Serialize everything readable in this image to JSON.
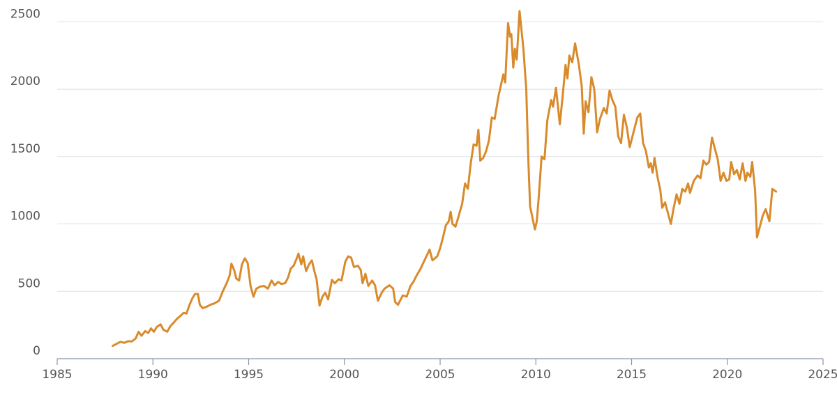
{
  "chart_data": {
    "type": "line",
    "title": "",
    "xlabel": "",
    "ylabel": "",
    "xlim": [
      1985,
      2025
    ],
    "ylim": [
      0,
      2600
    ],
    "x_ticks": [
      1985,
      1990,
      1995,
      2000,
      2005,
      2010,
      2015,
      2020,
      2025
    ],
    "y_ticks": [
      0,
      500,
      1000,
      1500,
      2000,
      2500
    ],
    "grid": "horizontal",
    "legend": "none",
    "series": [
      {
        "color": "#d98a2b",
        "points": [
          [
            1987.9,
            95
          ],
          [
            1988.1,
            110
          ],
          [
            1988.3,
            125
          ],
          [
            1988.5,
            118
          ],
          [
            1988.7,
            130
          ],
          [
            1988.9,
            128
          ],
          [
            1989.1,
            150
          ],
          [
            1989.25,
            200
          ],
          [
            1989.4,
            170
          ],
          [
            1989.6,
            205
          ],
          [
            1989.75,
            190
          ],
          [
            1989.9,
            225
          ],
          [
            1990.05,
            200
          ],
          [
            1990.2,
            235
          ],
          [
            1990.4,
            255
          ],
          [
            1990.55,
            215
          ],
          [
            1990.75,
            200
          ],
          [
            1990.9,
            240
          ],
          [
            1991.1,
            270
          ],
          [
            1991.25,
            295
          ],
          [
            1991.45,
            320
          ],
          [
            1991.6,
            340
          ],
          [
            1991.75,
            335
          ],
          [
            1991.9,
            395
          ],
          [
            1992.05,
            445
          ],
          [
            1992.2,
            480
          ],
          [
            1992.35,
            480
          ],
          [
            1992.45,
            400
          ],
          [
            1992.6,
            375
          ],
          [
            1992.8,
            385
          ],
          [
            1993.0,
            400
          ],
          [
            1993.2,
            410
          ],
          [
            1993.45,
            430
          ],
          [
            1993.65,
            500
          ],
          [
            1993.85,
            560
          ],
          [
            1994.0,
            615
          ],
          [
            1994.1,
            705
          ],
          [
            1994.25,
            655
          ],
          [
            1994.35,
            595
          ],
          [
            1994.5,
            580
          ],
          [
            1994.65,
            700
          ],
          [
            1994.8,
            745
          ],
          [
            1994.95,
            710
          ],
          [
            1995.1,
            540
          ],
          [
            1995.25,
            460
          ],
          [
            1995.4,
            520
          ],
          [
            1995.6,
            535
          ],
          [
            1995.8,
            540
          ],
          [
            1996.0,
            520
          ],
          [
            1996.2,
            580
          ],
          [
            1996.35,
            545
          ],
          [
            1996.55,
            570
          ],
          [
            1996.7,
            555
          ],
          [
            1996.9,
            560
          ],
          [
            1997.05,
            600
          ],
          [
            1997.2,
            670
          ],
          [
            1997.35,
            690
          ],
          [
            1997.5,
            740
          ],
          [
            1997.6,
            780
          ],
          [
            1997.75,
            700
          ],
          [
            1997.85,
            760
          ],
          [
            1998.0,
            650
          ],
          [
            1998.15,
            700
          ],
          [
            1998.3,
            730
          ],
          [
            1998.45,
            640
          ],
          [
            1998.55,
            590
          ],
          [
            1998.7,
            395
          ],
          [
            1998.85,
            460
          ],
          [
            1999.0,
            490
          ],
          [
            1999.15,
            440
          ],
          [
            1999.35,
            585
          ],
          [
            1999.5,
            560
          ],
          [
            1999.7,
            590
          ],
          [
            1999.85,
            580
          ],
          [
            2000.05,
            720
          ],
          [
            2000.2,
            760
          ],
          [
            2000.35,
            750
          ],
          [
            2000.5,
            680
          ],
          [
            2000.7,
            690
          ],
          [
            2000.85,
            660
          ],
          [
            2000.95,
            560
          ],
          [
            2001.1,
            630
          ],
          [
            2001.25,
            540
          ],
          [
            2001.45,
            580
          ],
          [
            2001.6,
            545
          ],
          [
            2001.75,
            430
          ],
          [
            2001.95,
            490
          ],
          [
            2002.1,
            520
          ],
          [
            2002.35,
            545
          ],
          [
            2002.55,
            520
          ],
          [
            2002.65,
            420
          ],
          [
            2002.8,
            400
          ],
          [
            2003.05,
            470
          ],
          [
            2003.25,
            460
          ],
          [
            2003.45,
            540
          ],
          [
            2003.6,
            570
          ],
          [
            2003.8,
            625
          ],
          [
            2003.95,
            660
          ],
          [
            2004.15,
            720
          ],
          [
            2004.35,
            780
          ],
          [
            2004.45,
            810
          ],
          [
            2004.6,
            730
          ],
          [
            2004.85,
            760
          ],
          [
            2005.0,
            820
          ],
          [
            2005.15,
            900
          ],
          [
            2005.3,
            990
          ],
          [
            2005.45,
            1020
          ],
          [
            2005.55,
            1090
          ],
          [
            2005.65,
            1000
          ],
          [
            2005.8,
            980
          ],
          [
            2005.95,
            1050
          ],
          [
            2006.15,
            1150
          ],
          [
            2006.3,
            1300
          ],
          [
            2006.45,
            1260
          ],
          [
            2006.6,
            1450
          ],
          [
            2006.75,
            1590
          ],
          [
            2006.9,
            1580
          ],
          [
            2007.0,
            1700
          ],
          [
            2007.1,
            1470
          ],
          [
            2007.25,
            1490
          ],
          [
            2007.4,
            1540
          ],
          [
            2007.55,
            1620
          ],
          [
            2007.7,
            1790
          ],
          [
            2007.85,
            1780
          ],
          [
            2008.05,
            1950
          ],
          [
            2008.3,
            2110
          ],
          [
            2008.4,
            2050
          ],
          [
            2008.55,
            2490
          ],
          [
            2008.65,
            2390
          ],
          [
            2008.72,
            2410
          ],
          [
            2008.82,
            2160
          ],
          [
            2008.9,
            2300
          ],
          [
            2009.0,
            2220
          ],
          [
            2009.15,
            2580
          ],
          [
            2009.35,
            2300
          ],
          [
            2009.5,
            2000
          ],
          [
            2009.6,
            1500
          ],
          [
            2009.7,
            1130
          ],
          [
            2009.8,
            1060
          ],
          [
            2009.95,
            960
          ],
          [
            2010.05,
            1020
          ],
          [
            2010.15,
            1200
          ],
          [
            2010.3,
            1500
          ],
          [
            2010.45,
            1480
          ],
          [
            2010.6,
            1770
          ],
          [
            2010.8,
            1920
          ],
          [
            2010.9,
            1870
          ],
          [
            2011.05,
            2010
          ],
          [
            2011.25,
            1740
          ],
          [
            2011.4,
            1950
          ],
          [
            2011.55,
            2180
          ],
          [
            2011.65,
            2080
          ],
          [
            2011.75,
            2250
          ],
          [
            2011.9,
            2200
          ],
          [
            2012.05,
            2340
          ],
          [
            2012.25,
            2180
          ],
          [
            2012.4,
            2020
          ],
          [
            2012.5,
            1670
          ],
          [
            2012.6,
            1910
          ],
          [
            2012.75,
            1830
          ],
          [
            2012.9,
            2090
          ],
          [
            2013.05,
            2000
          ],
          [
            2013.2,
            1680
          ],
          [
            2013.35,
            1780
          ],
          [
            2013.55,
            1860
          ],
          [
            2013.7,
            1820
          ],
          [
            2013.85,
            1990
          ],
          [
            2014.0,
            1920
          ],
          [
            2014.15,
            1870
          ],
          [
            2014.3,
            1650
          ],
          [
            2014.45,
            1600
          ],
          [
            2014.6,
            1810
          ],
          [
            2014.75,
            1720
          ],
          [
            2014.9,
            1570
          ],
          [
            2015.1,
            1680
          ],
          [
            2015.3,
            1790
          ],
          [
            2015.45,
            1820
          ],
          [
            2015.6,
            1600
          ],
          [
            2015.75,
            1540
          ],
          [
            2015.9,
            1420
          ],
          [
            2016.0,
            1450
          ],
          [
            2016.1,
            1380
          ],
          [
            2016.2,
            1490
          ],
          [
            2016.35,
            1350
          ],
          [
            2016.5,
            1250
          ],
          [
            2016.6,
            1120
          ],
          [
            2016.75,
            1160
          ],
          [
            2016.9,
            1080
          ],
          [
            2017.05,
            1000
          ],
          [
            2017.2,
            1120
          ],
          [
            2017.35,
            1220
          ],
          [
            2017.5,
            1150
          ],
          [
            2017.65,
            1260
          ],
          [
            2017.8,
            1240
          ],
          [
            2017.95,
            1300
          ],
          [
            2018.05,
            1230
          ],
          [
            2018.25,
            1320
          ],
          [
            2018.45,
            1360
          ],
          [
            2018.6,
            1340
          ],
          [
            2018.75,
            1470
          ],
          [
            2018.9,
            1440
          ],
          [
            2019.05,
            1460
          ],
          [
            2019.2,
            1640
          ],
          [
            2019.35,
            1560
          ],
          [
            2019.5,
            1480
          ],
          [
            2019.65,
            1320
          ],
          [
            2019.8,
            1380
          ],
          [
            2019.95,
            1320
          ],
          [
            2020.1,
            1330
          ],
          [
            2020.2,
            1460
          ],
          [
            2020.35,
            1370
          ],
          [
            2020.5,
            1400
          ],
          [
            2020.65,
            1330
          ],
          [
            2020.8,
            1450
          ],
          [
            2020.95,
            1320
          ],
          [
            2021.05,
            1380
          ],
          [
            2021.2,
            1350
          ],
          [
            2021.3,
            1460
          ],
          [
            2021.45,
            1250
          ],
          [
            2021.55,
            900
          ],
          [
            2021.7,
            980
          ],
          [
            2021.85,
            1060
          ],
          [
            2022.0,
            1110
          ],
          [
            2022.2,
            1020
          ],
          [
            2022.35,
            1260
          ],
          [
            2022.45,
            1250
          ],
          [
            2022.55,
            1240
          ]
        ]
      }
    ]
  }
}
